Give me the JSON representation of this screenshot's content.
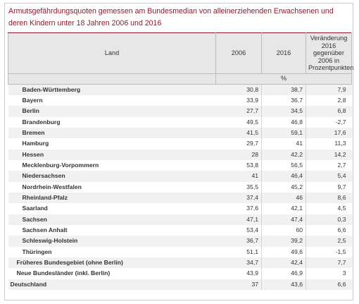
{
  "title": "Armutsgefährdungsquoten gemessen am Bundesmedian von alleinerziehenden Erwachsenen und deren Kindern unter 18 Jahren 2006 und 2016",
  "columns": {
    "land": "Land",
    "y2006": "2006",
    "y2016": "2016",
    "change": "Veränderung 2016 gegenüber 2006 in Prozentpunkten",
    "unit": "%"
  },
  "rows": [
    {
      "name": "Baden-Württemberg",
      "v2006": "30,8",
      "v2016": "38,7",
      "change": "7,9"
    },
    {
      "name": "Bayern",
      "v2006": "33,9",
      "v2016": "36,7",
      "change": "2,8"
    },
    {
      "name": "Berlin",
      "v2006": "27,7",
      "v2016": "34,5",
      "change": "6,8"
    },
    {
      "name": "Brandenburg",
      "v2006": "49,5",
      "v2016": "46,8",
      "change": "-2,7"
    },
    {
      "name": "Bremen",
      "v2006": "41,5",
      "v2016": "59,1",
      "change": "17,6"
    },
    {
      "name": "Hamburg",
      "v2006": "29,7",
      "v2016": "41",
      "change": "11,3"
    },
    {
      "name": "Hessen",
      "v2006": "28",
      "v2016": "42,2",
      "change": "14,2"
    },
    {
      "name": "Mecklenburg-Vorpommern",
      "v2006": "53,8",
      "v2016": "56,5",
      "change": "2,7"
    },
    {
      "name": "Niedersachsen",
      "v2006": "41",
      "v2016": "46,4",
      "change": "5,4"
    },
    {
      "name": "Nordrhein-Westfalen",
      "v2006": "35,5",
      "v2016": "45,2",
      "change": "9,7"
    },
    {
      "name": "Rheinland-Pfalz",
      "v2006": "37,4",
      "v2016": "46",
      "change": "8,6"
    },
    {
      "name": "Saarland",
      "v2006": "37,6",
      "v2016": "42,1",
      "change": "4,5"
    },
    {
      "name": "Sachsen",
      "v2006": "47,1",
      "v2016": "47,4",
      "change": "0,3"
    },
    {
      "name": "Sachsen Anhalt",
      "v2006": "53,4",
      "v2016": "60",
      "change": "6,6"
    },
    {
      "name": "Schleswig-Holstein",
      "v2006": "36,7",
      "v2016": "39,2",
      "change": "2,5"
    },
    {
      "name": "Thüringen",
      "v2006": "51,1",
      "v2016": "49,6",
      "change": "-1,5"
    },
    {
      "name": "Früheres Bundesgebiet (ohne Berlin)",
      "v2006": "34,7",
      "v2016": "42,4",
      "change": "7,7"
    },
    {
      "name": "Neue Bundesländer (inkl. Berlin)",
      "v2006": "43,9",
      "v2016": "46,9",
      "change": "3"
    },
    {
      "name": "Deutschland",
      "v2006": "37",
      "v2016": "43,6",
      "change": "6,6"
    }
  ]
}
